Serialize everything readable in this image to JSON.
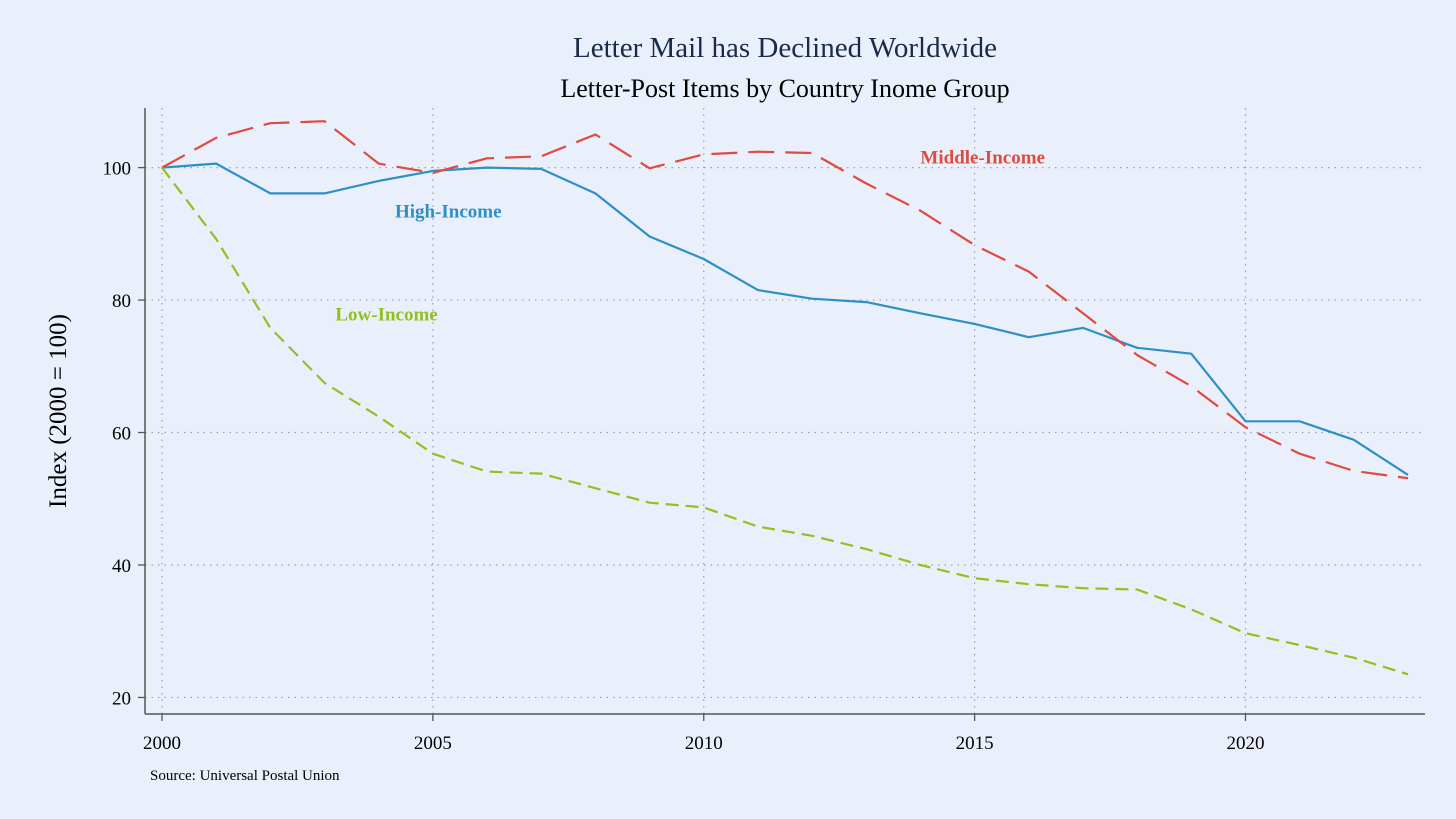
{
  "chart_data": {
    "type": "line",
    "title": "Letter Mail has Declined Worldwide",
    "subtitle": "Letter-Post Items by Country Inome Group",
    "xlabel": "",
    "ylabel": "Index (2000 = 100)",
    "xlim": [
      2000,
      2023
    ],
    "ylim": [
      17.5,
      109
    ],
    "x": [
      2000,
      2001,
      2002,
      2003,
      2004,
      2005,
      2006,
      2007,
      2008,
      2009,
      2010,
      2011,
      2012,
      2013,
      2014,
      2015,
      2016,
      2017,
      2018,
      2019,
      2020,
      2021,
      2022,
      2023
    ],
    "x_ticks": [
      2000,
      2005,
      2010,
      2015,
      2020
    ],
    "x_tick_labels": [
      "2000",
      "2005",
      "2010",
      "2015",
      "2020"
    ],
    "y_ticks": [
      20,
      40,
      60,
      80,
      100
    ],
    "y_tick_labels": [
      "20",
      "40",
      "60",
      "80",
      "100"
    ],
    "grid": true,
    "series": [
      {
        "name": "High-Income",
        "label": "High-Income",
        "color": "#2e8fc7",
        "dash": "solid",
        "label_at": [
          2004.3,
          93.4
        ],
        "values": [
          100,
          100.6,
          96.1,
          96.1,
          98.0,
          99.5,
          100.0,
          99.8,
          96.1,
          89.6,
          86.2,
          81.5,
          80.2,
          79.7,
          78.0,
          76.4,
          74.4,
          75.8,
          72.8,
          71.9,
          61.7,
          61.7,
          58.9,
          53.6
        ]
      },
      {
        "name": "Middle-Income",
        "label": "Middle-Income",
        "color": "#e04a3f",
        "dash": "longdash",
        "label_at": [
          2014.0,
          101.5
        ],
        "values": [
          100,
          104.5,
          106.7,
          107.0,
          100.6,
          99.2,
          101.4,
          101.7,
          105.0,
          99.9,
          102.0,
          102.4,
          102.2,
          97.6,
          93.5,
          88.3,
          84.3,
          78.0,
          71.7,
          67.0,
          60.8,
          56.8,
          54.2,
          53.1
        ]
      },
      {
        "name": "Low-Income",
        "label": "Low-Income",
        "color": "#93c01f",
        "dash": "dash",
        "label_at": [
          2003.2,
          77.8
        ],
        "values": [
          100,
          89.2,
          75.8,
          67.5,
          62.4,
          56.8,
          54.1,
          53.8,
          51.6,
          49.4,
          48.7,
          45.8,
          44.4,
          42.4,
          40.0,
          38.0,
          37.1,
          36.5,
          36.3,
          33.3,
          29.7,
          27.9,
          26.0,
          23.5
        ]
      }
    ],
    "note": "Source: Universal Postal Union"
  }
}
